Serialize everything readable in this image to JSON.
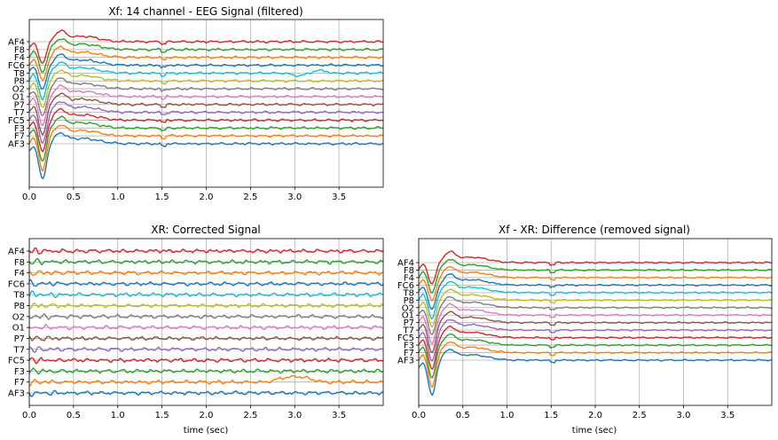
{
  "chart_data": [
    {
      "type": "line",
      "title": "Xf: 14 channel - EEG Signal (filtered)",
      "xlabel": "",
      "xlim": [
        0,
        4
      ],
      "xticks": [
        "0.0",
        "0.5",
        "1.0",
        "1.5",
        "2.0",
        "2.5",
        "3.0",
        "3.5"
      ],
      "channels": [
        "AF3",
        "F7",
        "F3",
        "FC5",
        "T7",
        "P7",
        "O1",
        "O2",
        "P8",
        "T8",
        "FC6",
        "F4",
        "F8",
        "AF4"
      ],
      "grid": true,
      "signal": "filtered",
      "big_artifact_at": 0.15
    },
    {
      "type": "line",
      "title": "XR: Corrected Signal",
      "xlabel": "time (sec)",
      "xlim": [
        0,
        4
      ],
      "xticks": [
        "0.0",
        "0.5",
        "1.0",
        "1.5",
        "2.0",
        "2.5",
        "3.0",
        "3.5"
      ],
      "channels": [
        "AF3",
        "F7",
        "F3",
        "FC5",
        "T7",
        "P7",
        "O1",
        "O2",
        "P8",
        "T8",
        "FC6",
        "F4",
        "F8",
        "AF4"
      ],
      "grid": true,
      "signal": "corrected"
    },
    {
      "type": "line",
      "title": "Xf - XR: Difference (removed signal)",
      "xlabel": "time (sec)",
      "xlim": [
        0,
        4
      ],
      "xticks": [
        "0.0",
        "0.5",
        "1.0",
        "1.5",
        "2.0",
        "2.5",
        "3.0",
        "3.5"
      ],
      "channels": [
        "AF3",
        "F7",
        "F3",
        "FC5",
        "T7",
        "P7",
        "O1",
        "O2",
        "P8",
        "T8",
        "FC6",
        "F4",
        "F8",
        "AF4"
      ],
      "grid": true,
      "signal": "difference",
      "big_artifact_at": 0.15
    }
  ],
  "colors": [
    "#1f77b4",
    "#ff7f0e",
    "#2ca02c",
    "#d62728",
    "#9467bd",
    "#8c564b",
    "#e377c2",
    "#7f7f7f",
    "#bcbd22",
    "#17becf",
    "#1f77b4",
    "#ff7f0e",
    "#2ca02c",
    "#d62728"
  ]
}
